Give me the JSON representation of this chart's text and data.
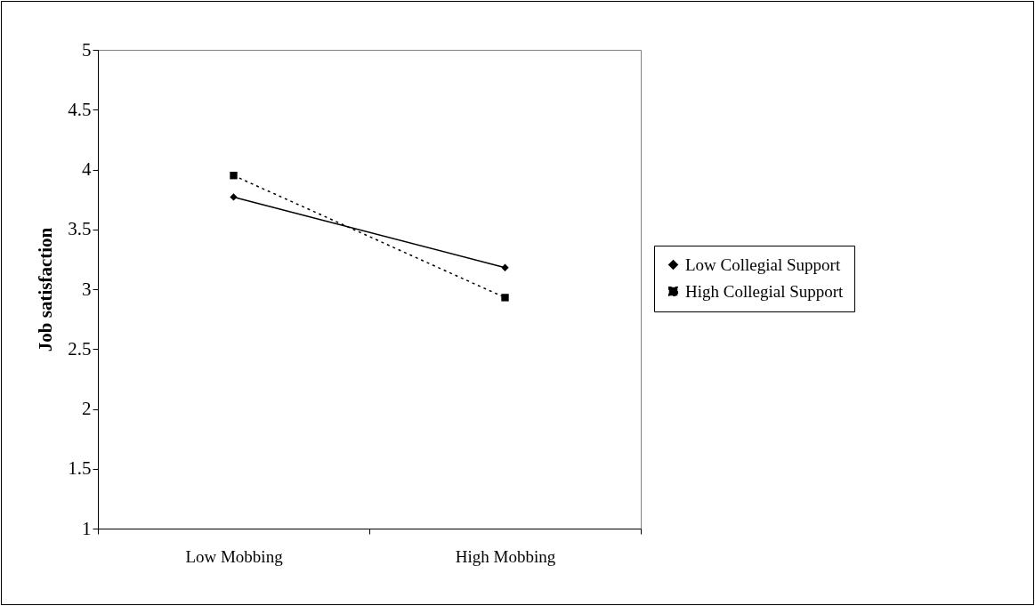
{
  "chart_data": {
    "type": "line",
    "ylabel": "Job satisfaction",
    "categories": [
      "Low Mobbing",
      "High Mobbing"
    ],
    "series": [
      {
        "name": "Low Collegial Support",
        "color": "#000000",
        "marker": "diamond",
        "line_style": "solid",
        "values": [
          3.77,
          3.18
        ]
      },
      {
        "name": "High Collegial Support",
        "color": "#000000",
        "marker": "square",
        "line_style": "dotted",
        "values": [
          3.95,
          2.93
        ]
      }
    ],
    "ylim": [
      1,
      5
    ],
    "yticks": [
      1,
      1.5,
      2,
      2.5,
      3,
      3.5,
      4,
      4.5,
      5
    ],
    "grid": false,
    "legend": "right"
  }
}
